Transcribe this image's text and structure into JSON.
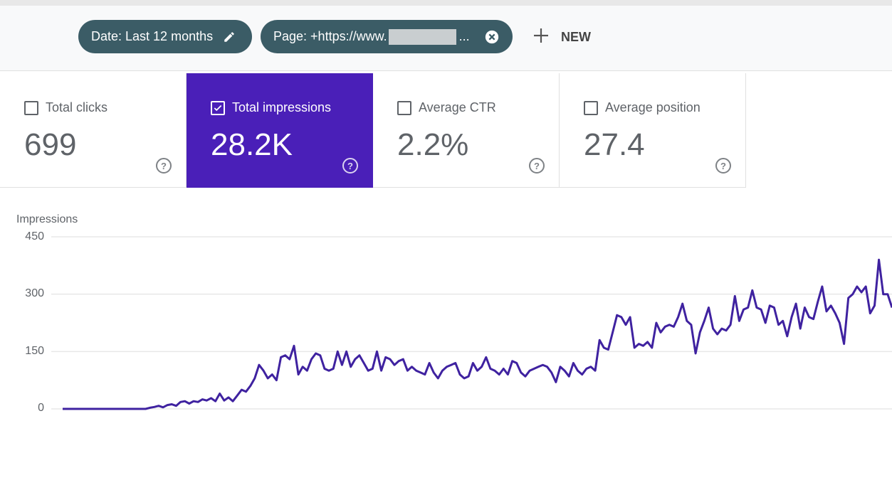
{
  "filters": {
    "date_chip": "Date: Last 12 months",
    "page_chip_prefix": "Page: +https://www.",
    "page_chip_suffix": "...",
    "new_label": "NEW"
  },
  "metrics": [
    {
      "label": "Total clicks",
      "value": "699",
      "checked": false
    },
    {
      "label": "Total impressions",
      "value": "28.2K",
      "checked": true
    },
    {
      "label": "Average CTR",
      "value": "2.2%",
      "checked": false
    },
    {
      "label": "Average position",
      "value": "27.4",
      "checked": false
    }
  ],
  "colors": {
    "impressions": "#4a1fb8",
    "chip": "#3b5c66"
  },
  "chart_data": {
    "type": "line",
    "title": "",
    "ylabel": "Impressions",
    "yticks": [
      "0",
      "150",
      "300",
      "450"
    ],
    "ylim": [
      0,
      450
    ],
    "grid": true,
    "series": [
      {
        "name": "Impressions",
        "color": "#3f22a0",
        "values": [
          0,
          0,
          0,
          0,
          0,
          0,
          0,
          0,
          0,
          0,
          0,
          0,
          0,
          0,
          0,
          0,
          0,
          0,
          0,
          0,
          3,
          5,
          8,
          4,
          10,
          12,
          8,
          18,
          20,
          14,
          20,
          18,
          25,
          22,
          28,
          20,
          40,
          22,
          30,
          20,
          35,
          50,
          45,
          60,
          80,
          115,
          100,
          80,
          90,
          75,
          135,
          140,
          130,
          165,
          90,
          110,
          100,
          130,
          145,
          140,
          105,
          100,
          105,
          150,
          115,
          150,
          110,
          130,
          140,
          120,
          100,
          105,
          150,
          100,
          135,
          130,
          115,
          125,
          130,
          100,
          110,
          100,
          95,
          90,
          120,
          95,
          80,
          100,
          110,
          115,
          120,
          90,
          80,
          85,
          120,
          100,
          110,
          135,
          105,
          100,
          90,
          105,
          90,
          125,
          120,
          95,
          85,
          100,
          105,
          110,
          115,
          110,
          95,
          70,
          110,
          100,
          85,
          120,
          100,
          90,
          105,
          110,
          100,
          180,
          160,
          155,
          200,
          245,
          240,
          220,
          240,
          160,
          170,
          165,
          175,
          160,
          225,
          200,
          215,
          220,
          215,
          240,
          275,
          230,
          220,
          145,
          200,
          230,
          265,
          210,
          195,
          210,
          205,
          220,
          295,
          230,
          260,
          265,
          310,
          265,
          260,
          225,
          270,
          265,
          220,
          230,
          190,
          240,
          275,
          210,
          265,
          240,
          235,
          280,
          320,
          255,
          270,
          250,
          225,
          170,
          290,
          300,
          320,
          305,
          320,
          250,
          270,
          390,
          300,
          300,
          265
        ]
      }
    ]
  }
}
